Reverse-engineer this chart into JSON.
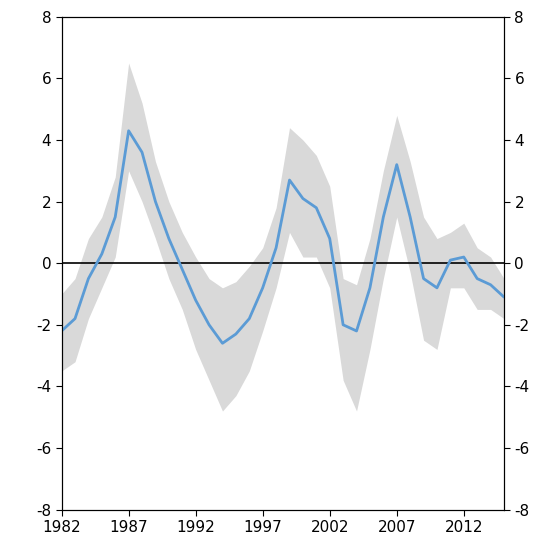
{
  "years": [
    1982,
    1983,
    1984,
    1985,
    1986,
    1987,
    1988,
    1989,
    1990,
    1991,
    1992,
    1993,
    1994,
    1995,
    1996,
    1997,
    1998,
    1999,
    2000,
    2001,
    2002,
    2003,
    2004,
    2005,
    2006,
    2007,
    2008,
    2009,
    2010,
    2011,
    2012,
    2013,
    2014,
    2015
  ],
  "output_gap": [
    -2.2,
    -1.8,
    -0.5,
    0.3,
    1.5,
    4.3,
    3.6,
    2.0,
    0.8,
    -0.2,
    -1.2,
    -2.0,
    -2.6,
    -2.3,
    -1.8,
    -0.8,
    0.5,
    2.7,
    2.1,
    1.8,
    0.8,
    -2.0,
    -2.2,
    -0.8,
    1.5,
    3.2,
    1.5,
    -0.5,
    -0.8,
    0.1,
    0.2,
    -0.5,
    -0.7,
    -1.1
  ],
  "upper_band": [
    -1.0,
    -0.5,
    0.8,
    1.5,
    2.8,
    6.5,
    5.2,
    3.3,
    2.0,
    1.0,
    0.2,
    -0.5,
    -0.8,
    -0.6,
    -0.1,
    0.5,
    1.8,
    4.4,
    4.0,
    3.5,
    2.5,
    -0.5,
    -0.7,
    0.8,
    3.0,
    4.8,
    3.3,
    1.5,
    0.8,
    1.0,
    1.3,
    0.5,
    0.2,
    -0.5
  ],
  "lower_band": [
    -3.5,
    -3.2,
    -1.8,
    -0.8,
    0.2,
    3.0,
    2.0,
    0.8,
    -0.5,
    -1.5,
    -2.8,
    -3.8,
    -4.8,
    -4.3,
    -3.5,
    -2.2,
    -0.8,
    1.0,
    0.2,
    0.2,
    -0.8,
    -3.8,
    -4.8,
    -2.8,
    -0.5,
    1.5,
    -0.3,
    -2.5,
    -2.8,
    -0.8,
    -0.8,
    -1.5,
    -1.5,
    -1.8
  ],
  "line_color": "#5b9bd5",
  "band_color": "#d9d9d9",
  "zero_line_color": "#000000",
  "xlim": [
    1982,
    2015
  ],
  "ylim": [
    -8,
    8
  ],
  "yticks": [
    -8,
    -6,
    -4,
    -2,
    0,
    2,
    4,
    6,
    8
  ],
  "xticks": [
    1982,
    1987,
    1992,
    1997,
    2002,
    2007,
    2012
  ],
  "background_color": "#ffffff",
  "line_width": 2.0,
  "band_alpha": 1.0
}
